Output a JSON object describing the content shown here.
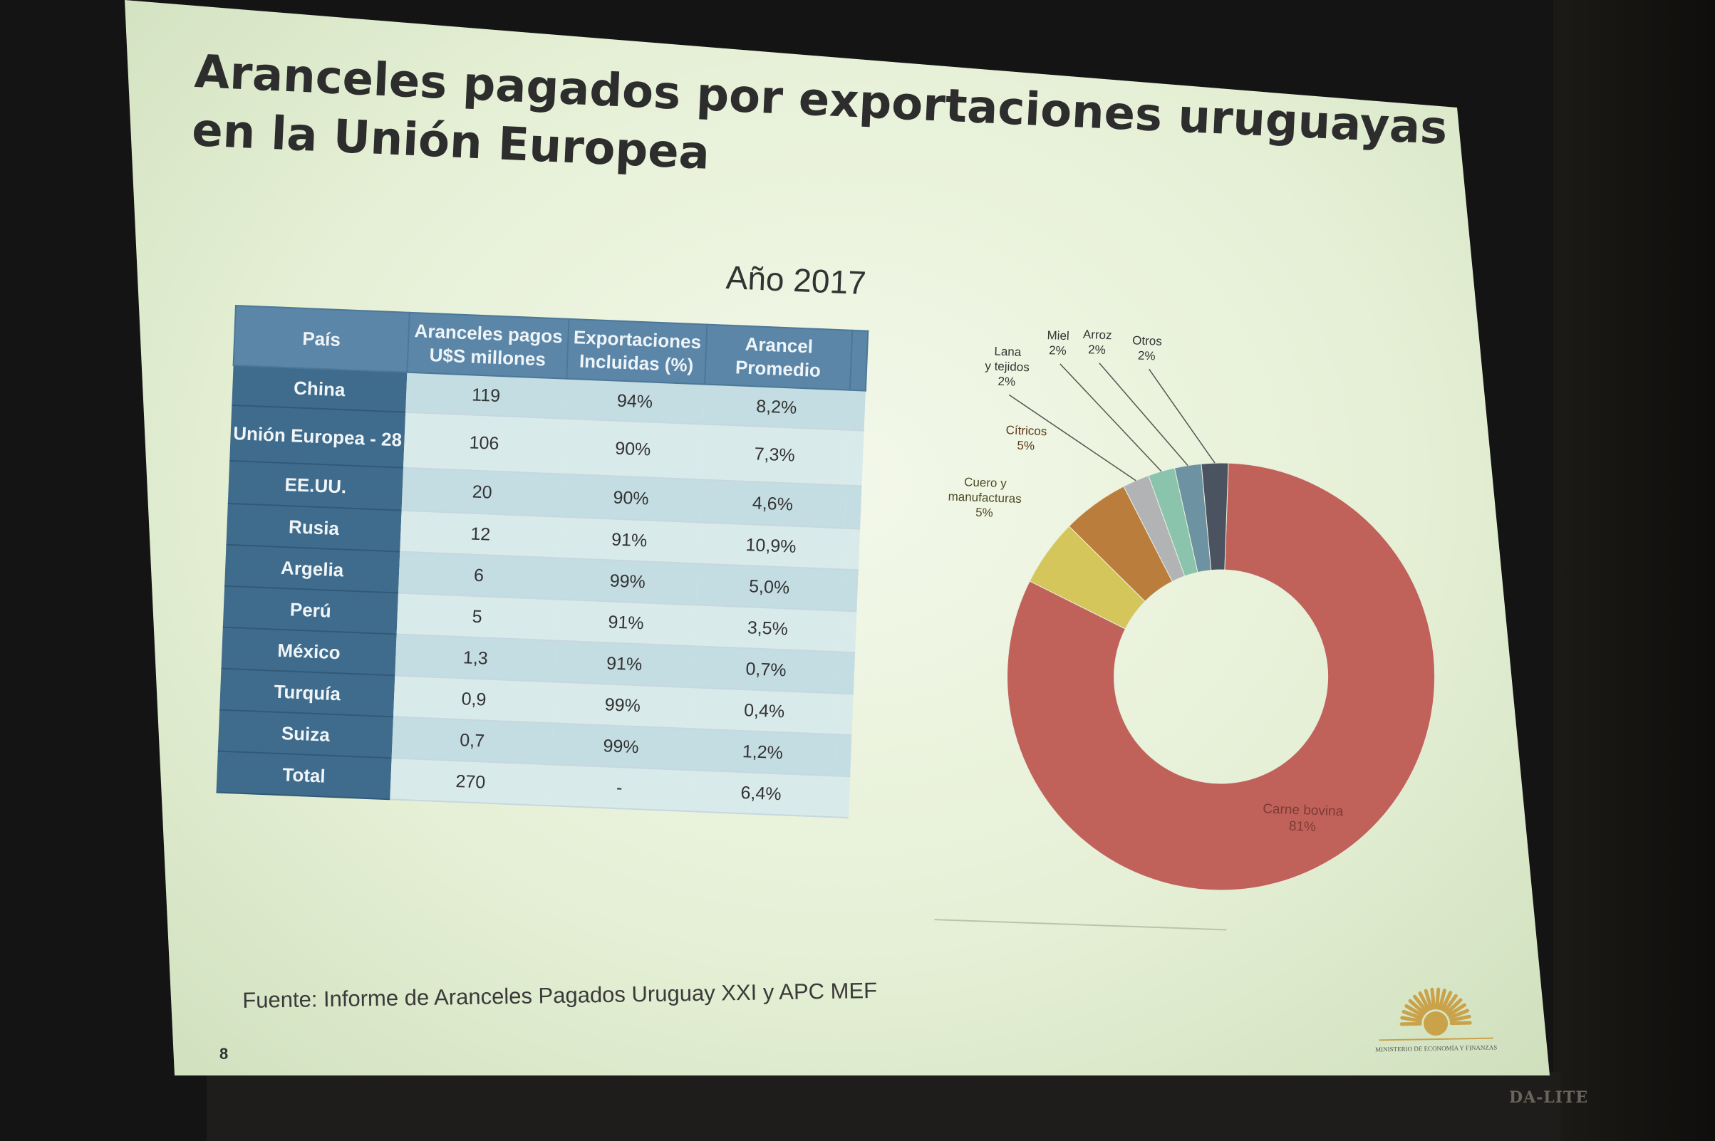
{
  "slide": {
    "title": "Aranceles pagados por exportaciones uruguayas en la Unión Europea",
    "subtitle": "Año 2017",
    "source": "Fuente:  Informe  de Aranceles  Pagados  Uruguay  XXI  y APC MEF",
    "page_number": "8"
  },
  "table": {
    "headers": [
      "País",
      "Aranceles pagos U$S millones",
      "Exportaciones Incluidas (%)",
      "Arancel Promedio"
    ],
    "rows": [
      {
        "pais": "China",
        "aranceles": "119",
        "exportaciones": "94%",
        "promedio": "8,2%"
      },
      {
        "pais": "Unión Europea - 28",
        "aranceles": "106",
        "exportaciones": "90%",
        "promedio": "7,3%"
      },
      {
        "pais": "EE.UU.",
        "aranceles": "20",
        "exportaciones": "90%",
        "promedio": "4,6%"
      },
      {
        "pais": "Rusia",
        "aranceles": "12",
        "exportaciones": "91%",
        "promedio": "10,9%"
      },
      {
        "pais": "Argelia",
        "aranceles": "6",
        "exportaciones": "99%",
        "promedio": "5,0%"
      },
      {
        "pais": "Perú",
        "aranceles": "5",
        "exportaciones": "91%",
        "promedio": "3,5%"
      },
      {
        "pais": "México",
        "aranceles": "1,3",
        "exportaciones": "91%",
        "promedio": "0,7%"
      },
      {
        "pais": "Turquía",
        "aranceles": "0,9",
        "exportaciones": "99%",
        "promedio": "0,4%"
      },
      {
        "pais": "Suiza",
        "aranceles": "0,7",
        "exportaciones": "99%",
        "promedio": "1,2%"
      },
      {
        "pais": "Total",
        "aranceles": "270",
        "exportaciones": "-",
        "promedio": "6,4%"
      }
    ]
  },
  "chart_data": [
    {
      "type": "table",
      "columns": [
        "País",
        "Aranceles pagos U$S millones",
        "Exportaciones Incluidas (%)",
        "Arancel Promedio"
      ],
      "rows": [
        [
          "China",
          "119",
          "94%",
          "8,2%"
        ],
        [
          "Unión Europea - 28",
          "106",
          "90%",
          "7,3%"
        ],
        [
          "EE.UU.",
          "20",
          "90%",
          "4,6%"
        ],
        [
          "Rusia",
          "12",
          "91%",
          "10,9%"
        ],
        [
          "Argelia",
          "6",
          "99%",
          "5,0%"
        ],
        [
          "Perú",
          "5",
          "91%",
          "3,5%"
        ],
        [
          "México",
          "1,3",
          "91%",
          "0,7%"
        ],
        [
          "Turquía",
          "0,9",
          "99%",
          "0,4%"
        ],
        [
          "Suiza",
          "0,7",
          "99%",
          "1,2%"
        ],
        [
          "Total",
          "270",
          "-",
          "6,4%"
        ]
      ]
    },
    {
      "type": "pie",
      "donut": true,
      "slices": [
        {
          "label": "Carne bovina",
          "pct_label": "81%",
          "value": 81,
          "color": "#c0625a"
        },
        {
          "label": "Cuero y manufacturas",
          "pct_label": "5%",
          "value": 5,
          "color": "#d4c65a"
        },
        {
          "label": "Cítricos",
          "pct_label": "5%",
          "value": 5,
          "color": "#bb7d3c"
        },
        {
          "label": "Lana y tejidos",
          "pct_label": "2%",
          "value": 2,
          "color": "#b1b3b5"
        },
        {
          "label": "Miel",
          "pct_label": "2%",
          "value": 2,
          "color": "#8ac4ac"
        },
        {
          "label": "Arroz",
          "pct_label": "2%",
          "value": 2,
          "color": "#6d93a3"
        },
        {
          "label": "Otros",
          "pct_label": "2%",
          "value": 2,
          "color": "#4b5360"
        }
      ]
    }
  ],
  "logo": {
    "text": "MINISTERIO DE ECONOMÍA Y FINANZAS",
    "color": "#c9a24a"
  },
  "screen_brand": "DA-LITE"
}
